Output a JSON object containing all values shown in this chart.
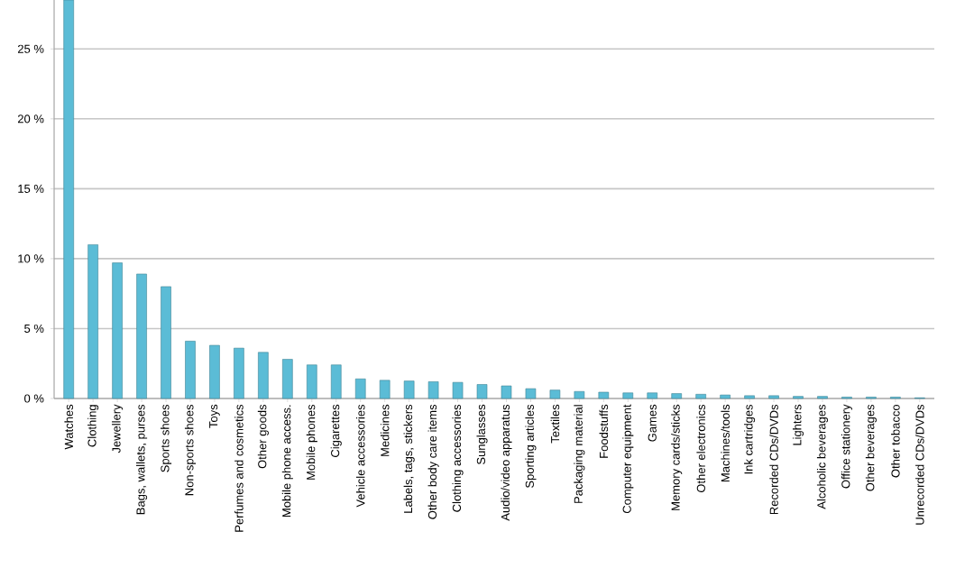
{
  "chart_data": {
    "type": "bar",
    "categories": [
      "Watches",
      "Clothing",
      "Jewellery",
      "Bags, wallets, purses",
      "Sports shoes",
      "Non-sports shoes",
      "Toys",
      "Perfumes and cosmetics",
      "Other goods",
      "Mobile phone access.",
      "Mobile phones",
      "Cigarettes",
      "Vehicle accessories",
      "Medicines",
      "Labels, tags, stickers",
      "Other body care items",
      "Clothing accessories",
      "Sunglasses",
      "Audio/video apparatus",
      "Sporting articles",
      "Textiles",
      "Packaging material",
      "Foodstuffs",
      "Computer equipment",
      "Games",
      "Memory cards/sticks",
      "Other electronics",
      "Machines/tools",
      "Ink cartridges",
      "Recorded CDs/DVDs",
      "Lighters",
      "Alcoholic beverages",
      "Office stationery",
      "Other beverages",
      "Other tobacco",
      "Unrecorded CDs/DVDs"
    ],
    "values": [
      28.5,
      11.0,
      9.7,
      8.9,
      8.0,
      4.1,
      3.8,
      3.6,
      3.3,
      2.8,
      2.4,
      2.4,
      1.4,
      1.3,
      1.25,
      1.2,
      1.15,
      1.0,
      0.9,
      0.7,
      0.6,
      0.5,
      0.45,
      0.4,
      0.4,
      0.35,
      0.3,
      0.25,
      0.2,
      0.2,
      0.15,
      0.15,
      0.1,
      0.1,
      0.1,
      0.05
    ],
    "color": "#5bbcd6",
    "ylim": [
      0,
      28.5
    ],
    "yticks": [
      {
        "value": 0,
        "label": "0 %"
      },
      {
        "value": 5,
        "label": "5 %"
      },
      {
        "value": 10,
        "label": "10 %"
      },
      {
        "value": 15,
        "label": "15 %"
      },
      {
        "value": 20,
        "label": "20 %"
      },
      {
        "value": 25,
        "label": "25 %"
      }
    ],
    "grid": "y"
  }
}
